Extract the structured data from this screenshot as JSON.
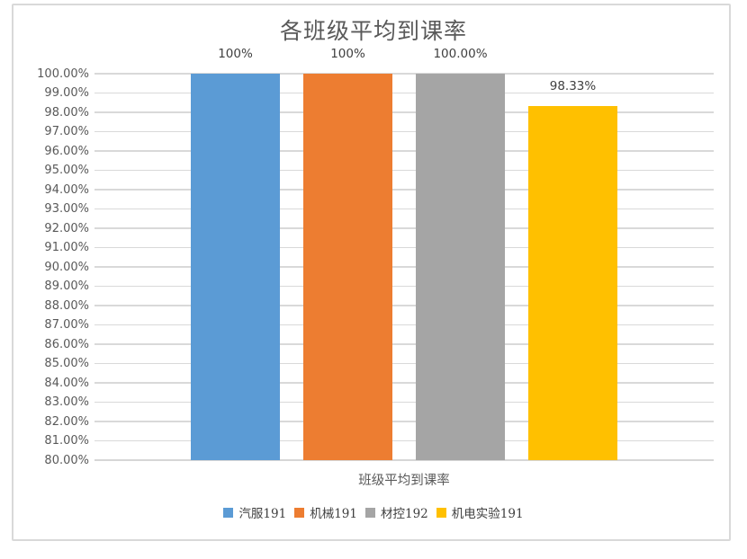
{
  "chart_data": {
    "type": "bar",
    "title": "各班级平均到课率",
    "xlabel": "班级平均到课率",
    "ylabel": "",
    "categories": [
      "汽服191",
      "机械191",
      "材控192",
      "机电实验191"
    ],
    "values": [
      100,
      100,
      100,
      98.33
    ],
    "data_labels": [
      "100%",
      "100%",
      "100.00%",
      "98.33%"
    ],
    "bar_colors": [
      "#5B9BD5",
      "#ED7D31",
      "#A5A5A5",
      "#FFC000"
    ],
    "ylim": [
      80,
      100
    ],
    "ytick_step": 1,
    "ytick_labels": [
      "100.00%",
      "99.00%",
      "98.00%",
      "97.00%",
      "96.00%",
      "95.00%",
      "94.00%",
      "93.00%",
      "92.00%",
      "91.00%",
      "90.00%",
      "89.00%",
      "88.00%",
      "87.00%",
      "86.00%",
      "85.00%",
      "84.00%",
      "83.00%",
      "82.00%",
      "81.00%",
      "80.00%"
    ],
    "grid": true,
    "legend_position": "bottom",
    "legend": [
      {
        "label": "汽服191",
        "color": "#5B9BD5"
      },
      {
        "label": "机械191",
        "color": "#ED7D31"
      },
      {
        "label": "材控192",
        "color": "#A5A5A5"
      },
      {
        "label": "机电实验191",
        "color": "#FFC000"
      }
    ]
  },
  "colors": {
    "title_text": "#595959",
    "axis_text": "#595959",
    "data_label_text": "#404040",
    "gridline": "#D9D9D9",
    "frame_border": "#D9D9D9",
    "background": "#FFFFFF"
  }
}
